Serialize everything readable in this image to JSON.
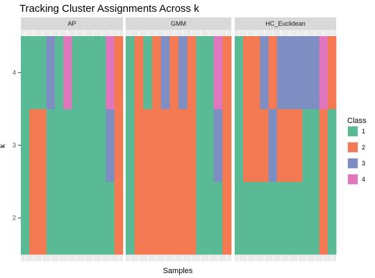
{
  "chart_data": {
    "type": "heatmap",
    "title": "Tracking Cluster Assignments Across k",
    "xlabel": "Samples",
    "ylabel": "k",
    "y_ticks": [
      2,
      3,
      4
    ],
    "legend": {
      "title": "Class",
      "position": "right",
      "entries": [
        "1",
        "2",
        "3",
        "4"
      ]
    },
    "class_colors": {
      "1": "#5BBA96",
      "2": "#F47A53",
      "3": "#7F8EC2",
      "4": "#E077BE"
    },
    "panels": [
      {
        "name": "AP",
        "k": [
          2,
          3,
          4
        ],
        "classes": [
          [
            1,
            2,
            2,
            1,
            1,
            1,
            1,
            1,
            1,
            1,
            1,
            2
          ],
          [
            1,
            2,
            2,
            1,
            1,
            1,
            1,
            1,
            1,
            1,
            3,
            2
          ],
          [
            1,
            1,
            1,
            3,
            1,
            4,
            1,
            1,
            1,
            1,
            4,
            2
          ]
        ]
      },
      {
        "name": "GMM",
        "k": [
          2,
          3,
          4
        ],
        "classes": [
          [
            1,
            2,
            2,
            2,
            2,
            2,
            2,
            2,
            1,
            1,
            1,
            2
          ],
          [
            1,
            2,
            2,
            2,
            2,
            2,
            2,
            2,
            1,
            1,
            3,
            2
          ],
          [
            1,
            2,
            1,
            2,
            3,
            2,
            3,
            2,
            1,
            1,
            4,
            2
          ]
        ]
      },
      {
        "name": "HC_Euclidean",
        "k": [
          2,
          3,
          4
        ],
        "classes": [
          [
            1,
            1,
            1,
            1,
            1,
            1,
            1,
            1,
            1,
            1,
            2,
            1
          ],
          [
            1,
            2,
            2,
            2,
            3,
            2,
            2,
            2,
            1,
            1,
            2,
            1
          ],
          [
            1,
            2,
            2,
            3,
            2,
            3,
            3,
            3,
            3,
            3,
            4,
            2
          ]
        ]
      }
    ]
  }
}
